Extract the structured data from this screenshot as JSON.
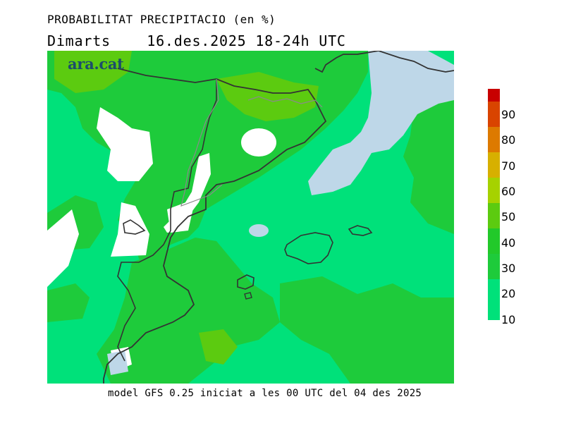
{
  "header": {
    "title": "PROBABILITAT PRECIPITACIO (en %)",
    "subtitle": "Dimarts    16.des.2025 18-24h UTC"
  },
  "map": {
    "logo_text": "ara.cat"
  },
  "footer": {
    "text": "model GFS 0.25 iniciat a les 00 UTC del 04 des 2025"
  },
  "legend": {
    "labels": [
      "90",
      "80",
      "70",
      "60",
      "50",
      "40",
      "30",
      "20",
      "10"
    ],
    "colors": {
      "above_90": "#c80000",
      "80_90": "#d94400",
      "70_80": "#dd7a00",
      "60_70": "#d7b000",
      "50_60": "#a6d200",
      "40_50": "#5ccb10",
      "30_40": "#22c92a",
      "20_30": "#1ecb3b",
      "10_20": "#00e17a",
      "below_10": "#ffffff",
      "low_blue": "#bed7e8"
    }
  }
}
